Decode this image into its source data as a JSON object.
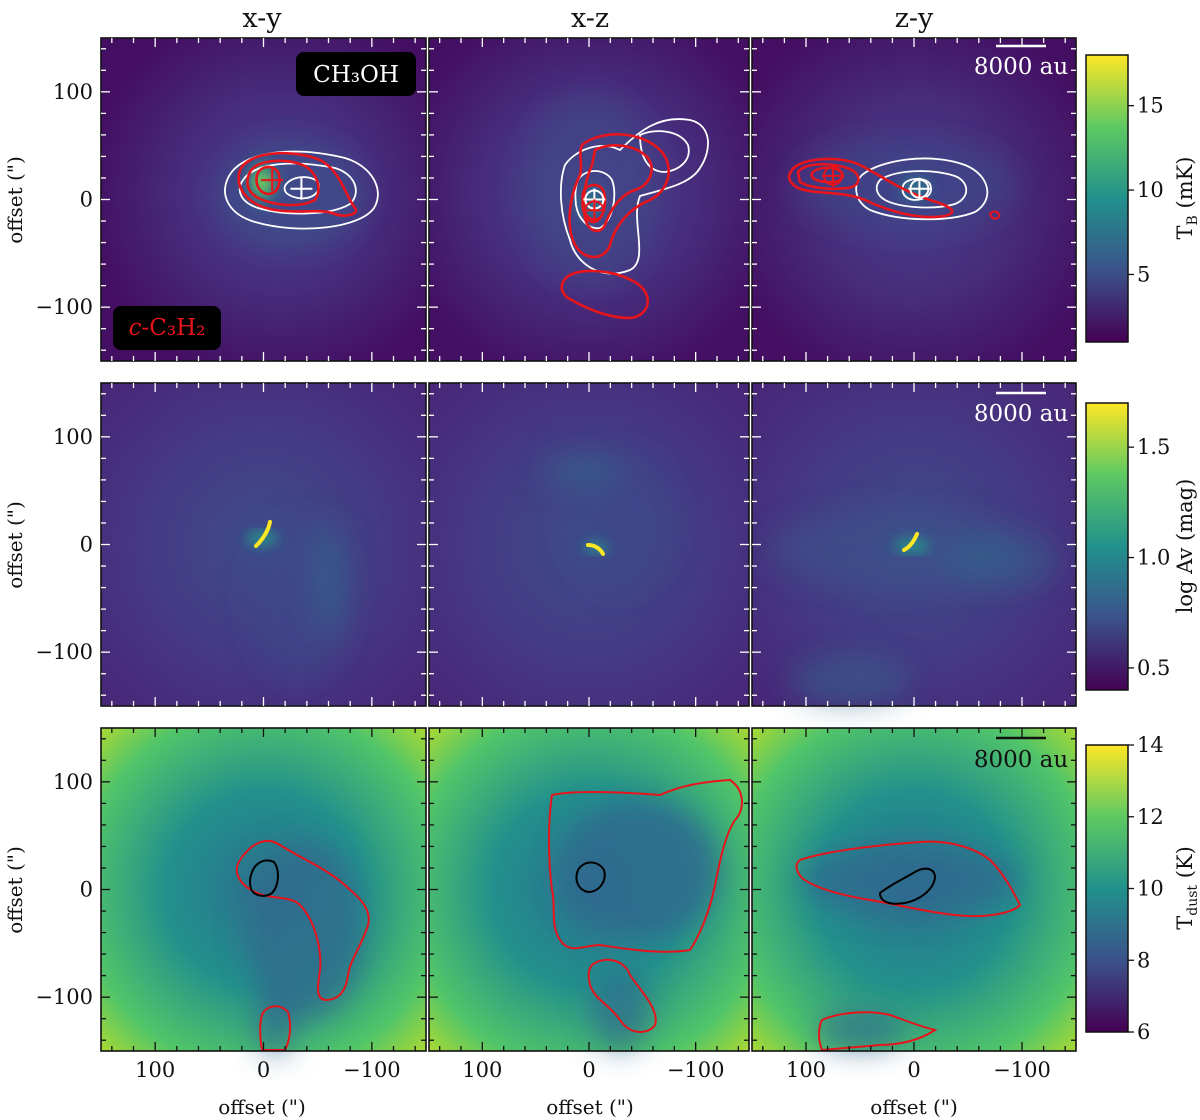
{
  "figure": {
    "column_titles": [
      "x-y",
      "x-z",
      "z-y"
    ],
    "scale_bar_label": "8000 au",
    "molecule_label_1": "CH₃OH",
    "molecule_label_2_prefix": "c",
    "molecule_label_2_rest": "-C₃H₂",
    "xlabel": "offset (\")",
    "ylabel": "offset (\")"
  },
  "chart_data": [
    {
      "type": "heatmap",
      "row": 1,
      "panels": [
        "x-y",
        "x-z",
        "z-y"
      ],
      "colorbar_label": "T_B (mK)",
      "colormap": "viridis",
      "clim": [
        1,
        18
      ],
      "colorbar_ticks": [
        5,
        10,
        15
      ],
      "contours": [
        {
          "name": "CH3OH",
          "color": "#ffffff"
        },
        {
          "name": "c-C3H2",
          "color": "#e8141c"
        }
      ],
      "peaks_xy": {
        "CH3OH": [
          -35,
          10
        ],
        "c-C3H2": [
          -8,
          18
        ]
      },
      "peaks_xz": {
        "CH3OH": [
          -5,
          0
        ],
        "c-C3H2": [
          -5,
          -10
        ]
      },
      "peaks_zy": {
        "CH3OH": [
          -5,
          10
        ],
        "c-C3H2": [
          75,
          22
        ]
      }
    },
    {
      "type": "heatmap",
      "row": 2,
      "panels": [
        "x-y",
        "x-z",
        "z-y"
      ],
      "colorbar_label": "log Av (mag)",
      "colormap": "viridis",
      "clim": [
        0.4,
        1.7
      ],
      "colorbar_ticks": [
        0.5,
        1.0,
        1.5
      ],
      "colorbar_tick_labels": [
        "0.5",
        "1.0",
        "1.5"
      ]
    },
    {
      "type": "heatmap",
      "row": 3,
      "panels": [
        "x-y",
        "x-z",
        "z-y"
      ],
      "colorbar_label": "T_dust (K)",
      "colormap": "viridis",
      "clim": [
        6,
        14
      ],
      "colorbar_ticks": [
        6,
        8,
        10,
        12,
        14
      ],
      "contours": [
        {
          "name": "outer",
          "color": "#e8141c"
        },
        {
          "name": "inner",
          "color": "#000000"
        }
      ]
    }
  ],
  "axes": {
    "xlim": [
      150,
      -150
    ],
    "ylim": [
      -150,
      150
    ],
    "xticks": [
      100,
      0,
      -100
    ],
    "xtick_labels": [
      "100",
      "0",
      "−100"
    ],
    "yticks": [
      100,
      0,
      -100
    ],
    "ytick_labels": [
      "100",
      "0",
      "−100"
    ]
  }
}
